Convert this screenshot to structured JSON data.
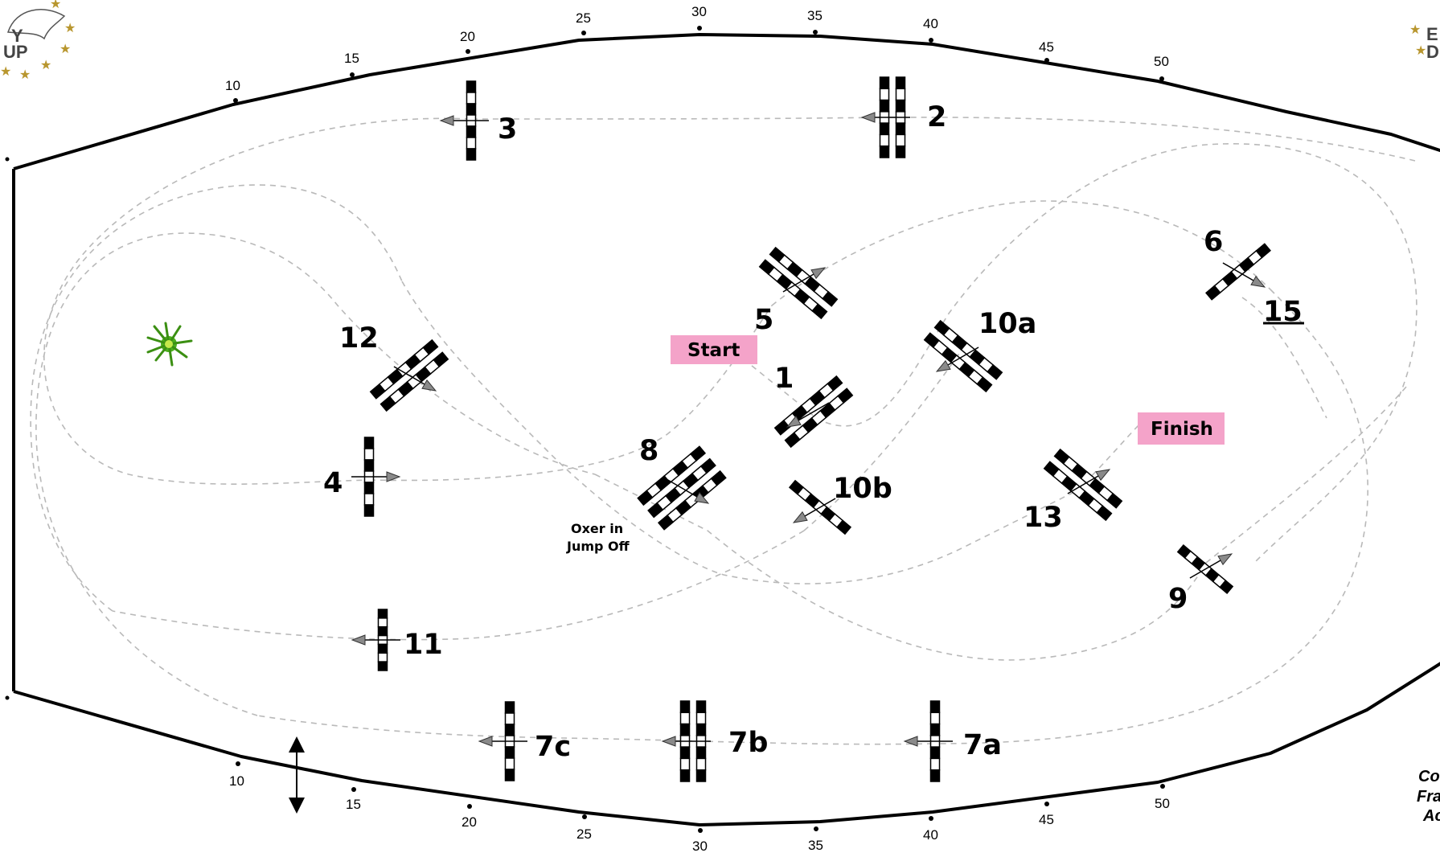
{
  "course": {
    "arena_border_color": "#000000",
    "path_color": "#b9b9b9",
    "tag_color": "#f4a3c9",
    "distance_marks_top": [
      "10",
      "15",
      "20",
      "25",
      "30",
      "35",
      "40",
      "45",
      "50"
    ],
    "distance_marks_bottom": [
      "10",
      "15",
      "20",
      "25",
      "30",
      "35",
      "40",
      "45",
      "50"
    ],
    "fences": [
      {
        "id": "1",
        "label": "1",
        "type": "oxer"
      },
      {
        "id": "2",
        "label": "2",
        "type": "oxer"
      },
      {
        "id": "3",
        "label": "3",
        "type": "vertical"
      },
      {
        "id": "4",
        "label": "4",
        "type": "vertical"
      },
      {
        "id": "5",
        "label": "5",
        "type": "oxer"
      },
      {
        "id": "6",
        "label": "6",
        "type": "vertical"
      },
      {
        "id": "7a",
        "label": "7a",
        "type": "vertical"
      },
      {
        "id": "7b",
        "label": "7b",
        "type": "oxer"
      },
      {
        "id": "7c",
        "label": "7c",
        "type": "vertical"
      },
      {
        "id": "8",
        "label": "8",
        "type": "triple bar"
      },
      {
        "id": "9",
        "label": "9",
        "type": "vertical"
      },
      {
        "id": "10a",
        "label": "10a",
        "type": "oxer"
      },
      {
        "id": "10b",
        "label": "10b",
        "type": "vertical"
      },
      {
        "id": "11",
        "label": "11",
        "type": "vertical"
      },
      {
        "id": "12",
        "label": "12",
        "type": "oxer"
      },
      {
        "id": "13",
        "label": "13",
        "type": "oxer"
      }
    ],
    "jump_off_fence": "15",
    "oxer_note_line1": "Oxer  in",
    "oxer_note_line2": "Jump Off",
    "start_label": "Start",
    "finish_label": "Finish",
    "credit_lines": [
      "Co",
      "Fra",
      "Ac"
    ],
    "logo_left_lines": [
      "Y",
      "UP"
    ],
    "logo_right_lines": [
      "E",
      "D"
    ],
    "decoration_icon": "green-shrub-icon",
    "scale_icon": "double-arrow-icon"
  }
}
